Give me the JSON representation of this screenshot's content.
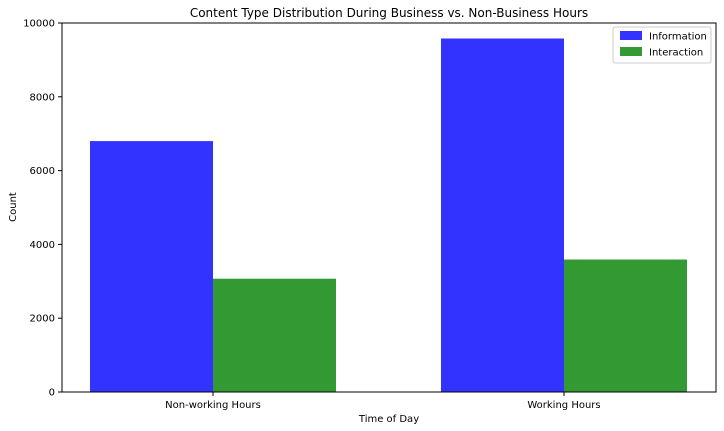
{
  "chart_data": {
    "type": "bar",
    "title": "Content Type Distribution During Business vs. Non-Business Hours",
    "xlabel": "Time of Day",
    "ylabel": "Count",
    "categories": [
      "Non-working Hours",
      "Working Hours"
    ],
    "series": [
      {
        "name": "Information",
        "color": "#3333ff",
        "values": [
          6800,
          9580
        ]
      },
      {
        "name": "Interaction",
        "color": "#339933",
        "values": [
          3070,
          3590
        ]
      }
    ],
    "ylim": [
      0,
      10000
    ],
    "yticks": [
      0,
      2000,
      4000,
      6000,
      8000,
      10000
    ],
    "grid": false,
    "legend_position": "top-right"
  }
}
